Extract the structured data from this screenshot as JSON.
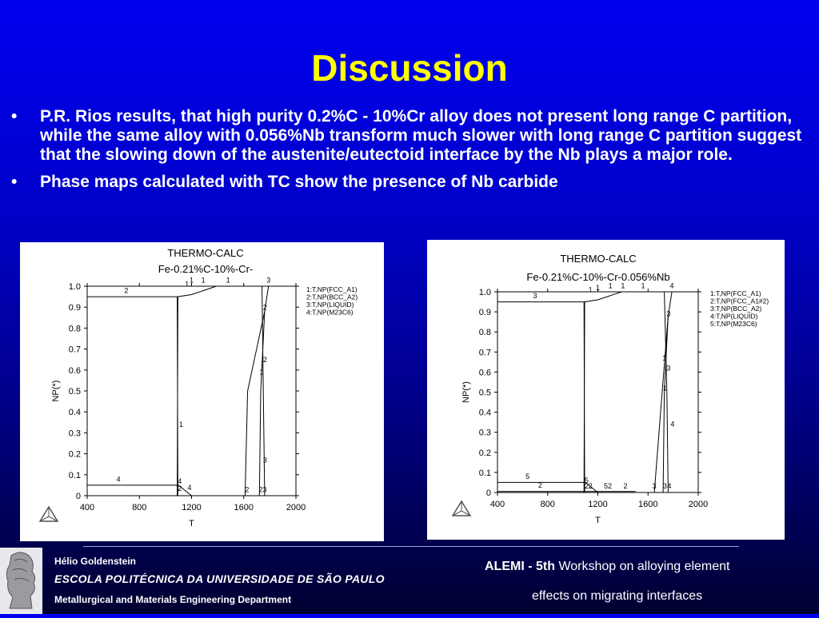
{
  "slide": {
    "title": "Discussion",
    "bullets": [
      {
        "marker": "•",
        "text": "P.R. Rios results, that high purity 0.2%C - 10%Cr alloy does not present long range C partition, while the same alloy with 0.056%Nb transform much slower with long range C partition suggest that the slowing down of the austenite/eutectoid interface by the Nb plays a major role."
      },
      {
        "marker": "•",
        "text": "Phase maps calculated with TC show the presence of Nb carbide"
      }
    ]
  },
  "footer": {
    "author": "Hélio Goldenstein",
    "school": "ESCOLA POLITÉCNICA DA UNIVERSIDADE DE SÃO PAULO",
    "department": "Metallurgical and Materials Engineering Department",
    "event_bold": "ALEMI - 5th",
    "event_rest": " Workshop on alloying element",
    "event_line2": "effects on migrating interfaces"
  },
  "chart_data": [
    {
      "type": "line",
      "title": "THERMO-CALC",
      "subtitle": "Fe-0.21%C-10%-Cr-",
      "xlabel": "T",
      "ylabel": "NP(*)",
      "xlim": [
        400,
        2000
      ],
      "ylim": [
        0,
        1.0
      ],
      "xticks": [
        "400",
        "800",
        "1200",
        "1600",
        "2000"
      ],
      "yticks": [
        "0",
        "0.1",
        "0.2",
        "0.3",
        "0.4",
        "0.5",
        "0.6",
        "0.7",
        "0.8",
        "0.9",
        "1.0"
      ],
      "legend": [
        "1:T,NP(FCC_A1)",
        "2:T,NP(BCC_A2)",
        "3:T,NP(LIQUID)",
        "4:T,NP(M23C6)"
      ],
      "legend_position": "right",
      "series": [
        {
          "name": "1:T,NP(FCC_A1)",
          "x": [
            1090,
            1095,
            1200,
            1390,
            1740,
            1750,
            1760
          ],
          "y": [
            0,
            0.95,
            0.96,
            1.0,
            1.0,
            0.5,
            0
          ]
        },
        {
          "name": "2:T,NP(BCC_A2)",
          "x": [
            400,
            1090,
            1095,
            1610,
            1630,
            1760
          ],
          "y": [
            0.95,
            0.95,
            0.0,
            0,
            0.5,
            0.88
          ]
        },
        {
          "name": "3:T,NP(LIQUID)",
          "x": [
            1720,
            1730,
            1760,
            1790
          ],
          "y": [
            0,
            0.5,
            0.88,
            1.0
          ]
        },
        {
          "name": "4:T,NP(M23C6)",
          "x": [
            400,
            1090,
            1100,
            1200
          ],
          "y": [
            0.05,
            0.05,
            0.05,
            0
          ]
        }
      ],
      "labels": [
        {
          "text": "2",
          "x": 700,
          "y": 0.96
        },
        {
          "text": "1",
          "x": 1165,
          "y": 0.99
        },
        {
          "text": "1",
          "x": 1200,
          "y": 1.01
        },
        {
          "text": "1",
          "x": 1290,
          "y": 1.01
        },
        {
          "text": "1",
          "x": 1480,
          "y": 1.01
        },
        {
          "text": "3",
          "x": 1790,
          "y": 1.01
        },
        {
          "text": "2",
          "x": 1763,
          "y": 0.88
        },
        {
          "text": "2",
          "x": 1763,
          "y": 0.63
        },
        {
          "text": "1",
          "x": 1735,
          "y": 0.57
        },
        {
          "text": "1",
          "x": 1120,
          "y": 0.32
        },
        {
          "text": "3",
          "x": 1763,
          "y": 0.15
        },
        {
          "text": "4",
          "x": 640,
          "y": 0.06
        },
        {
          "text": "4",
          "x": 1110,
          "y": 0.05
        },
        {
          "text": "2",
          "x": 1110,
          "y": 0.015
        },
        {
          "text": "4",
          "x": 1185,
          "y": 0.02
        },
        {
          "text": "2",
          "x": 1625,
          "y": 0.01
        },
        {
          "text": "2",
          "x": 1730,
          "y": 0.01
        },
        {
          "text": "3",
          "x": 1760,
          "y": 0.01
        }
      ]
    },
    {
      "type": "line",
      "title": "THERMO-CALC",
      "subtitle": "Fe-0.21%C-10%-Cr-0.056%Nb",
      "xlabel": "T",
      "ylabel": "NP(*)",
      "xlim": [
        400,
        2000
      ],
      "ylim": [
        0,
        1.0
      ],
      "xticks": [
        "400",
        "800",
        "1200",
        "1600",
        "2000"
      ],
      "yticks": [
        "0",
        "0.1",
        "0.2",
        "0.3",
        "0.4",
        "0.5",
        "0.6",
        "0.7",
        "0.8",
        "0.9",
        "1.0"
      ],
      "legend": [
        "1:T,NP(FCC_A1)",
        "2:T,NP(FCC_A1#2)",
        "3:T,NP(BCC_A2)",
        "4:T,NP(LIQUID)",
        "5:T,NP(M23C6)"
      ],
      "legend_position": "right",
      "series": [
        {
          "name": "1:T,NP(FCC_A1)",
          "x": [
            1090,
            1095,
            1200,
            1390,
            1730,
            1750,
            1760
          ],
          "y": [
            0,
            0.95,
            0.96,
            1.0,
            1.0,
            0.5,
            0
          ]
        },
        {
          "name": "2:T,NP(FCC_A1#2)",
          "x": [
            400,
            1090,
            1200,
            1500
          ],
          "y": [
            0.005,
            0.005,
            0.005,
            0.005
          ]
        },
        {
          "name": "3:T,NP(BCC_A2)",
          "x": [
            400,
            1090,
            1095,
            1650,
            1760
          ],
          "y": [
            0.95,
            0.95,
            0,
            0,
            0.88
          ]
        },
        {
          "name": "4:T,NP(LIQUID)",
          "x": [
            1720,
            1730,
            1760,
            1790
          ],
          "y": [
            0,
            0.5,
            0.88,
            1.0
          ]
        },
        {
          "name": "5:T,NP(M23C6)",
          "x": [
            400,
            1090,
            1100,
            1200
          ],
          "y": [
            0.05,
            0.05,
            0.05,
            0
          ]
        }
      ],
      "labels": [
        {
          "text": "3",
          "x": 700,
          "y": 0.96
        },
        {
          "text": "1",
          "x": 1140,
          "y": 0.99
        },
        {
          "text": "1",
          "x": 1200,
          "y": 1.0
        },
        {
          "text": "1",
          "x": 1300,
          "y": 1.01
        },
        {
          "text": "1",
          "x": 1400,
          "y": 1.01
        },
        {
          "text": "1",
          "x": 1560,
          "y": 1.01
        },
        {
          "text": "4",
          "x": 1790,
          "y": 1.01
        },
        {
          "text": "3",
          "x": 1763,
          "y": 0.87
        },
        {
          "text": "1",
          "x": 1730,
          "y": 0.65
        },
        {
          "text": "3",
          "x": 1763,
          "y": 0.6
        },
        {
          "text": "1",
          "x": 1735,
          "y": 0.5
        },
        {
          "text": "4",
          "x": 1795,
          "y": 0.32
        },
        {
          "text": "5",
          "x": 640,
          "y": 0.06
        },
        {
          "text": "2",
          "x": 740,
          "y": 0.015
        },
        {
          "text": "5",
          "x": 1110,
          "y": 0.04
        },
        {
          "text": "2",
          "x": 1110,
          "y": 0.012
        },
        {
          "text": "2",
          "x": 1140,
          "y": 0.012
        },
        {
          "text": "52",
          "x": 1280,
          "y": 0.012
        },
        {
          "text": "2",
          "x": 1420,
          "y": 0.012
        },
        {
          "text": "3",
          "x": 1650,
          "y": 0.012
        },
        {
          "text": "3",
          "x": 1735,
          "y": 0.012
        },
        {
          "text": "4",
          "x": 1770,
          "y": 0.012
        }
      ]
    }
  ]
}
